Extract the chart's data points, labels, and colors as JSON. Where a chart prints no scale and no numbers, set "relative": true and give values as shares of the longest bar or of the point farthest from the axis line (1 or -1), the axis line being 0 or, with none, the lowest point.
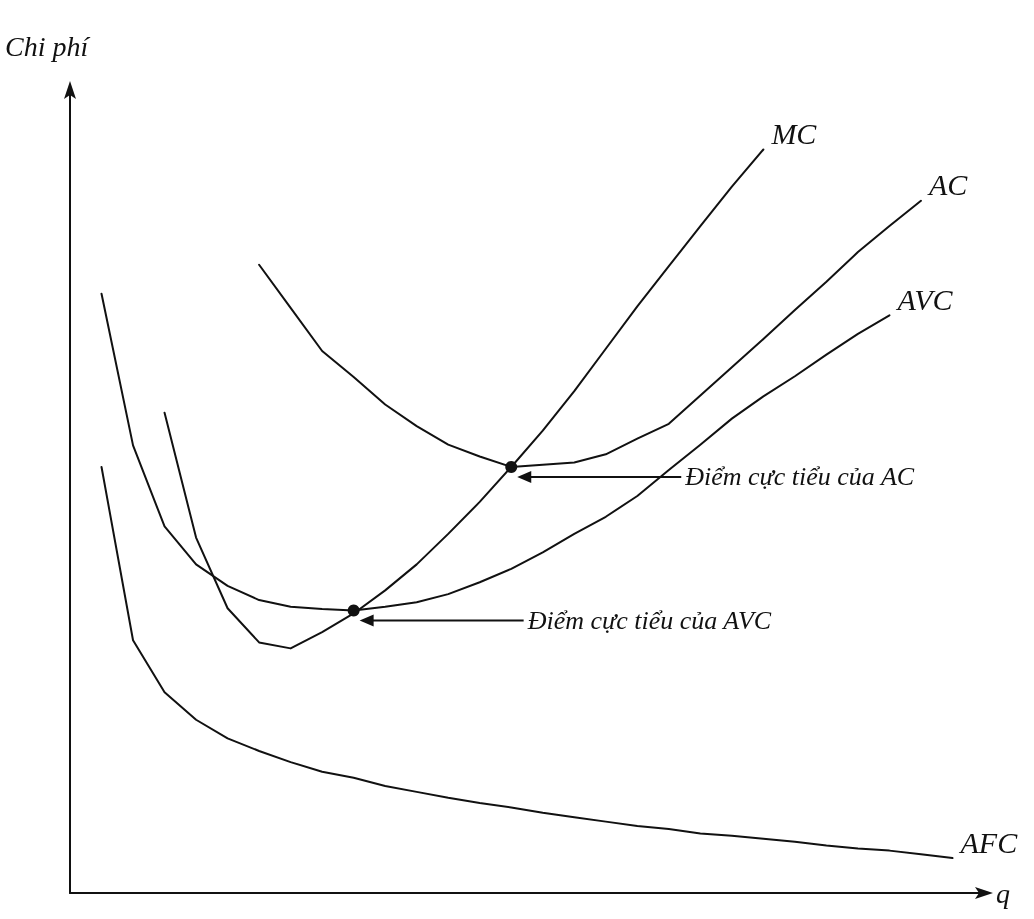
{
  "chart_data": {
    "type": "line",
    "relative": true,
    "xlabel": "q",
    "ylabel": "Chi phí",
    "grid": false,
    "legend": false,
    "marker": "none",
    "line_style": "solid",
    "categories": [
      null,
      null,
      null,
      null,
      null,
      null,
      null,
      null,
      null,
      null,
      null,
      null,
      null,
      null,
      null,
      null,
      null,
      null,
      null,
      null,
      null,
      null,
      null,
      null,
      null,
      null,
      null,
      null,
      null,
      null
    ],
    "series": [
      {
        "name": "MC",
        "color": "#111111",
        "values": [
          null,
          null,
          null,
          0.646,
          0.478,
          0.383,
          0.337,
          0.329,
          0.351,
          0.376,
          0.407,
          0.442,
          0.483,
          0.526,
          0.573,
          0.622,
          0.675,
          0.732,
          0.789,
          0.843,
          0.897,
          0.95,
          1,
          null,
          null,
          null,
          null,
          null,
          null,
          null
        ]
      },
      {
        "name": "AC",
        "color": "#111111",
        "values": [
          null,
          null,
          null,
          null,
          null,
          null,
          0.845,
          0.787,
          0.729,
          0.694,
          0.657,
          0.628,
          0.603,
          0.587,
          0.573,
          0.576,
          0.579,
          0.59,
          0.611,
          0.631,
          0.669,
          0.707,
          0.745,
          0.784,
          0.822,
          0.862,
          0.897,
          0.931,
          null,
          null
        ]
      },
      {
        "name": "AVC",
        "color": "#111111",
        "values": [
          null,
          0.806,
          0.602,
          0.493,
          0.442,
          0.413,
          0.394,
          0.385,
          0.382,
          0.38,
          0.385,
          0.391,
          0.402,
          0.418,
          0.436,
          0.458,
          0.483,
          0.506,
          0.534,
          0.569,
          0.603,
          0.638,
          0.668,
          0.695,
          0.724,
          0.752,
          0.777,
          null,
          null,
          null
        ]
      },
      {
        "name": "AFC",
        "color": "#111111",
        "values": [
          null,
          0.573,
          0.34,
          0.27,
          0.233,
          0.208,
          0.191,
          0.176,
          0.163,
          0.155,
          0.144,
          0.136,
          0.128,
          0.121,
          0.115,
          0.108,
          0.102,
          0.096,
          0.09,
          0.086,
          0.08,
          0.077,
          0.073,
          0.069,
          0.064,
          0.06,
          0.057,
          0.052,
          0.047,
          null
        ]
      }
    ],
    "annotations": [
      "Điểm cực tiểu của AC",
      "Điểm cực tiểu của AVC"
    ]
  }
}
